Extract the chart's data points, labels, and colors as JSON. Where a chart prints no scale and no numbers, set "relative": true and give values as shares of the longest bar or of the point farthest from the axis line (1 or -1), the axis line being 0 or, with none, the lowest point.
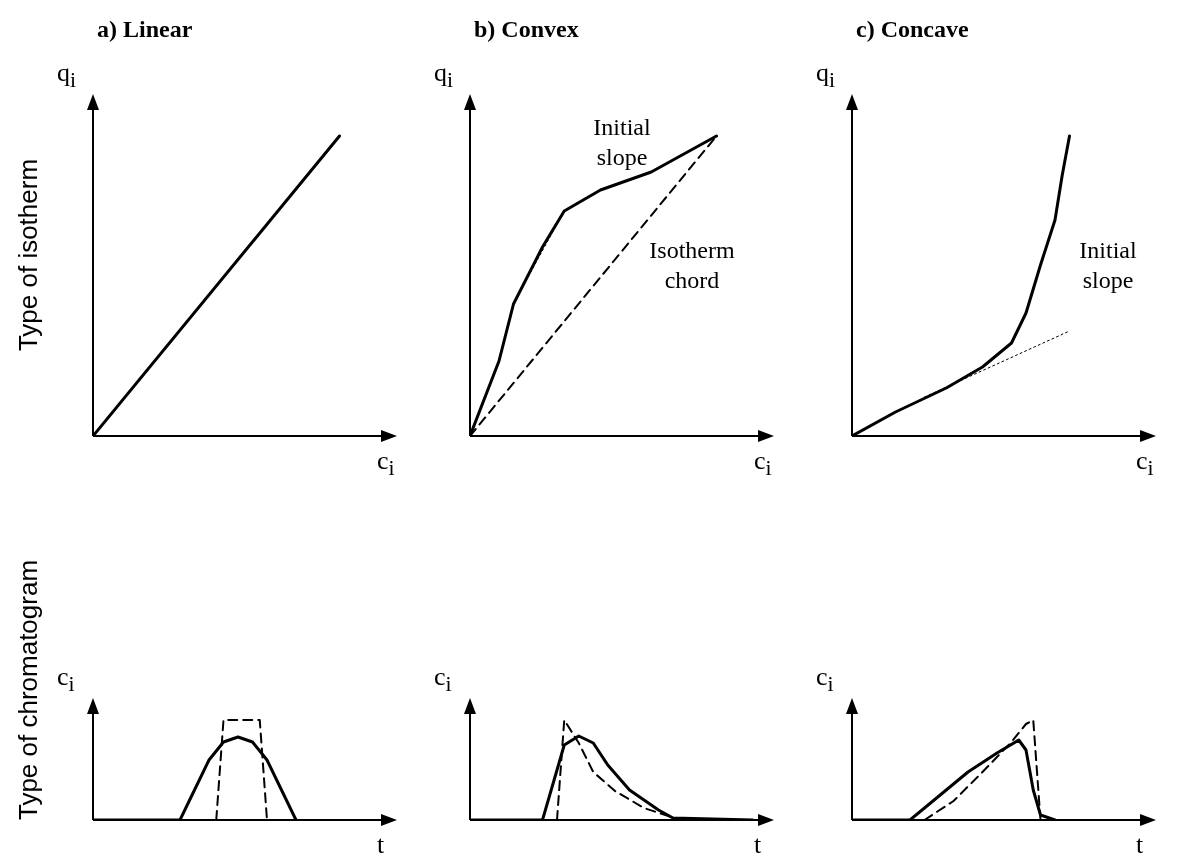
{
  "chart_data": [
    {
      "type": "line",
      "relative": true,
      "title": "a) Linear",
      "xlabel": "c$_{i}$",
      "ylabel": "q$_{i}$",
      "annotations": [
        "Type of  isotherm"
      ],
      "categories": [
        null,
        null,
        null,
        null,
        null,
        null,
        null,
        null,
        null,
        null,
        null,
        null,
        null,
        null,
        null,
        null,
        null,
        null,
        null,
        null,
        null,
        null,
        null,
        null,
        null,
        null,
        null,
        null,
        null,
        null,
        null,
        null,
        null,
        null,
        null,
        null,
        null,
        null,
        null,
        null,
        null
      ],
      "series": [
        {
          "color": "#000000",
          "line_style": "solid",
          "values": [
            0,
            null,
            null,
            null,
            null,
            null,
            null,
            null,
            null,
            null,
            null,
            null,
            null,
            null,
            null,
            null,
            null,
            null,
            null,
            null,
            null,
            null,
            null,
            null,
            null,
            null,
            null,
            null,
            null,
            null,
            null,
            null,
            null,
            null,
            1,
            null,
            null,
            null,
            null,
            null,
            null
          ]
        }
      ]
    },
    {
      "type": "line",
      "relative": true,
      "title": "b) Convex",
      "xlabel": "c$_{i}$",
      "ylabel": "q$_{i}$",
      "annotations": [
        "Initial\nslope",
        "Isotherm\nchord"
      ],
      "categories": [
        null,
        null,
        null,
        null,
        null,
        null,
        null,
        null,
        null,
        null,
        null,
        null,
        null,
        null,
        null,
        null,
        null,
        null,
        null,
        null,
        null,
        null,
        null,
        null,
        null,
        null,
        null,
        null,
        null,
        null,
        null,
        null,
        null,
        null,
        null,
        null,
        null,
        null,
        null,
        null,
        null
      ],
      "series": [
        {
          "color": "#000000",
          "line_style": "solid",
          "values": [
            0,
            null,
            null,
            null,
            0.25,
            null,
            0.44,
            null,
            null,
            null,
            0.63,
            null,
            null,
            0.75,
            null,
            null,
            null,
            null,
            0.82,
            null,
            null,
            null,
            null,
            null,
            null,
            0.88,
            null,
            null,
            null,
            null,
            null,
            null,
            null,
            null,
            1,
            null,
            null,
            null,
            null,
            null,
            null
          ]
        },
        {
          "color": "#000000",
          "line_style": "dashed",
          "values": [
            0,
            null,
            null,
            null,
            null,
            null,
            null,
            null,
            null,
            null,
            null,
            null,
            null,
            null,
            null,
            null,
            null,
            null,
            null,
            null,
            null,
            null,
            null,
            null,
            null,
            null,
            null,
            null,
            null,
            null,
            null,
            null,
            null,
            null,
            1,
            null,
            null,
            null,
            null,
            null,
            null
          ]
        },
        {
          "color": "#000000",
          "line_style": "dotted",
          "values": [
            null,
            null,
            null,
            null,
            null,
            null,
            null,
            null,
            0.53,
            null,
            null,
            null,
            null,
            0.75,
            null,
            null,
            null,
            null,
            null,
            null,
            null,
            null,
            null,
            null,
            null,
            null,
            null,
            null,
            null,
            null,
            null,
            null,
            null,
            null,
            null,
            null,
            null,
            null,
            null,
            null,
            null
          ]
        }
      ]
    },
    {
      "type": "line",
      "relative": true,
      "title": "c) Concave",
      "xlabel": "c$_{i}$",
      "ylabel": "q$_{i}$",
      "annotations": [
        "Initial\nslope"
      ],
      "categories": [
        null,
        null,
        null,
        null,
        null,
        null,
        null,
        null,
        null,
        null,
        null,
        null,
        null,
        null,
        null,
        null,
        null,
        null,
        null,
        null,
        null,
        null,
        null,
        null,
        null,
        null,
        null,
        null,
        null,
        null,
        null,
        null,
        null,
        null,
        null,
        null,
        null,
        null,
        null,
        null,
        null
      ],
      "series": [
        {
          "color": "#000000",
          "line_style": "solid",
          "values": [
            0,
            null,
            null,
            null,
            null,
            null,
            0.08,
            null,
            null,
            null,
            null,
            null,
            null,
            0.16,
            null,
            null,
            null,
            null,
            0.23,
            null,
            null,
            null,
            0.31,
            null,
            0.41,
            null,
            0.57,
            null,
            0.72,
            0.87,
            1,
            null,
            null,
            null,
            null,
            null,
            null,
            null,
            null,
            null,
            null
          ]
        },
        {
          "color": "#000000",
          "line_style": "dotted",
          "values": [
            null,
            null,
            null,
            null,
            null,
            null,
            null,
            null,
            null,
            null,
            0.13,
            null,
            null,
            null,
            null,
            null,
            null,
            null,
            null,
            null,
            null,
            null,
            null,
            null,
            null,
            null,
            null,
            null,
            null,
            null,
            0.35,
            null,
            null,
            null,
            null,
            null,
            null,
            null,
            null,
            null,
            null
          ]
        }
      ]
    },
    {
      "type": "line",
      "relative": true,
      "xlabel": "t",
      "ylabel": "c$_{i}$",
      "annotations": [
        "Type of  chromatogram"
      ],
      "categories": [
        null,
        null,
        null,
        null,
        null,
        null,
        null,
        null,
        null,
        null,
        null,
        null,
        null,
        null,
        null,
        null,
        null,
        null,
        null,
        null,
        null,
        null,
        null,
        null,
        null,
        null,
        null,
        null,
        null,
        null,
        null,
        null,
        null,
        null,
        null,
        null,
        null,
        null,
        null,
        null,
        null
      ],
      "series": [
        {
          "color": "#000000",
          "line_style": "solid",
          "values": [
            0,
            null,
            null,
            null,
            null,
            null,
            null,
            null,
            null,
            null,
            null,
            null,
            0,
            null,
            0.3,
            null,
            0.6,
            null,
            0.78,
            null,
            0.83,
            null,
            0.78,
            null,
            0.6,
            null,
            0.3,
            null,
            0,
            null,
            null,
            null,
            null,
            null,
            null,
            null,
            null,
            null,
            null,
            null,
            null
          ]
        },
        {
          "color": "#000000",
          "line_style": "dashed",
          "values": [
            null,
            null,
            null,
            null,
            null,
            null,
            null,
            null,
            null,
            null,
            null,
            null,
            null,
            null,
            null,
            null,
            null,
            0,
            1,
            null,
            null,
            null,
            null,
            1,
            0,
            null,
            null,
            null,
            null,
            null,
            null,
            null,
            null,
            null,
            null,
            null,
            null,
            null,
            null,
            null,
            null
          ]
        }
      ]
    },
    {
      "type": "line",
      "relative": true,
      "xlabel": "t",
      "ylabel": "c$_{i}$",
      "categories": [
        null,
        null,
        null,
        null,
        null,
        null,
        null,
        null,
        null,
        null,
        null,
        null,
        null,
        null,
        null,
        null,
        null,
        null,
        null,
        null,
        null,
        null,
        null,
        null,
        null,
        null,
        null,
        null,
        null,
        null,
        null,
        null,
        null,
        null,
        null,
        null,
        null,
        null,
        null,
        null,
        null
      ],
      "series": [
        {
          "color": "#000000",
          "line_style": "solid",
          "values": [
            0,
            null,
            null,
            null,
            null,
            null,
            null,
            null,
            null,
            null,
            0,
            null,
            0.5,
            0.75,
            null,
            0.84,
            null,
            0.77,
            null,
            0.55,
            null,
            null,
            0.3,
            null,
            null,
            null,
            0.1,
            null,
            0.02,
            null,
            null,
            null,
            null,
            null,
            null,
            null,
            null,
            null,
            null,
            0,
            null
          ]
        },
        {
          "color": "#000000",
          "line_style": "dashed",
          "values": [
            null,
            null,
            null,
            null,
            null,
            null,
            null,
            null,
            null,
            null,
            null,
            null,
            0,
            1,
            null,
            0.77,
            null,
            0.48,
            null,
            null,
            0.29,
            null,
            null,
            null,
            0.12,
            null,
            null,
            null,
            null,
            0,
            null,
            null,
            null,
            null,
            null,
            null,
            null,
            null,
            null,
            null,
            null
          ]
        }
      ]
    },
    {
      "type": "line",
      "relative": true,
      "xlabel": "t",
      "ylabel": "c$_{i}$",
      "categories": [
        null,
        null,
        null,
        null,
        null,
        null,
        null,
        null,
        null,
        null,
        null,
        null,
        null,
        null,
        null,
        null,
        null,
        null,
        null,
        null,
        null,
        null,
        null,
        null,
        null,
        null,
        null,
        null,
        null,
        null,
        null,
        null,
        null,
        null,
        null,
        null,
        null,
        null,
        null,
        null,
        null
      ],
      "series": [
        {
          "color": "#000000",
          "line_style": "solid",
          "values": [
            0,
            null,
            null,
            null,
            null,
            null,
            null,
            null,
            0,
            null,
            null,
            null,
            0.24,
            null,
            null,
            null,
            0.48,
            null,
            null,
            null,
            0.67,
            null,
            null,
            0.8,
            0.7,
            0.3,
            0.05,
            null,
            0,
            null,
            null,
            null,
            null,
            null,
            null,
            null,
            null,
            null,
            null,
            null,
            null
          ]
        },
        {
          "color": "#000000",
          "line_style": "dashed",
          "values": [
            null,
            null,
            null,
            null,
            null,
            null,
            null,
            null,
            null,
            null,
            0,
            null,
            null,
            null,
            0.19,
            null,
            null,
            null,
            0.48,
            null,
            null,
            null,
            0.78,
            null,
            0.96,
            1,
            0,
            null,
            null,
            null,
            null,
            null,
            null,
            null,
            null,
            null,
            null,
            null,
            null,
            null,
            null
          ]
        }
      ]
    }
  ]
}
